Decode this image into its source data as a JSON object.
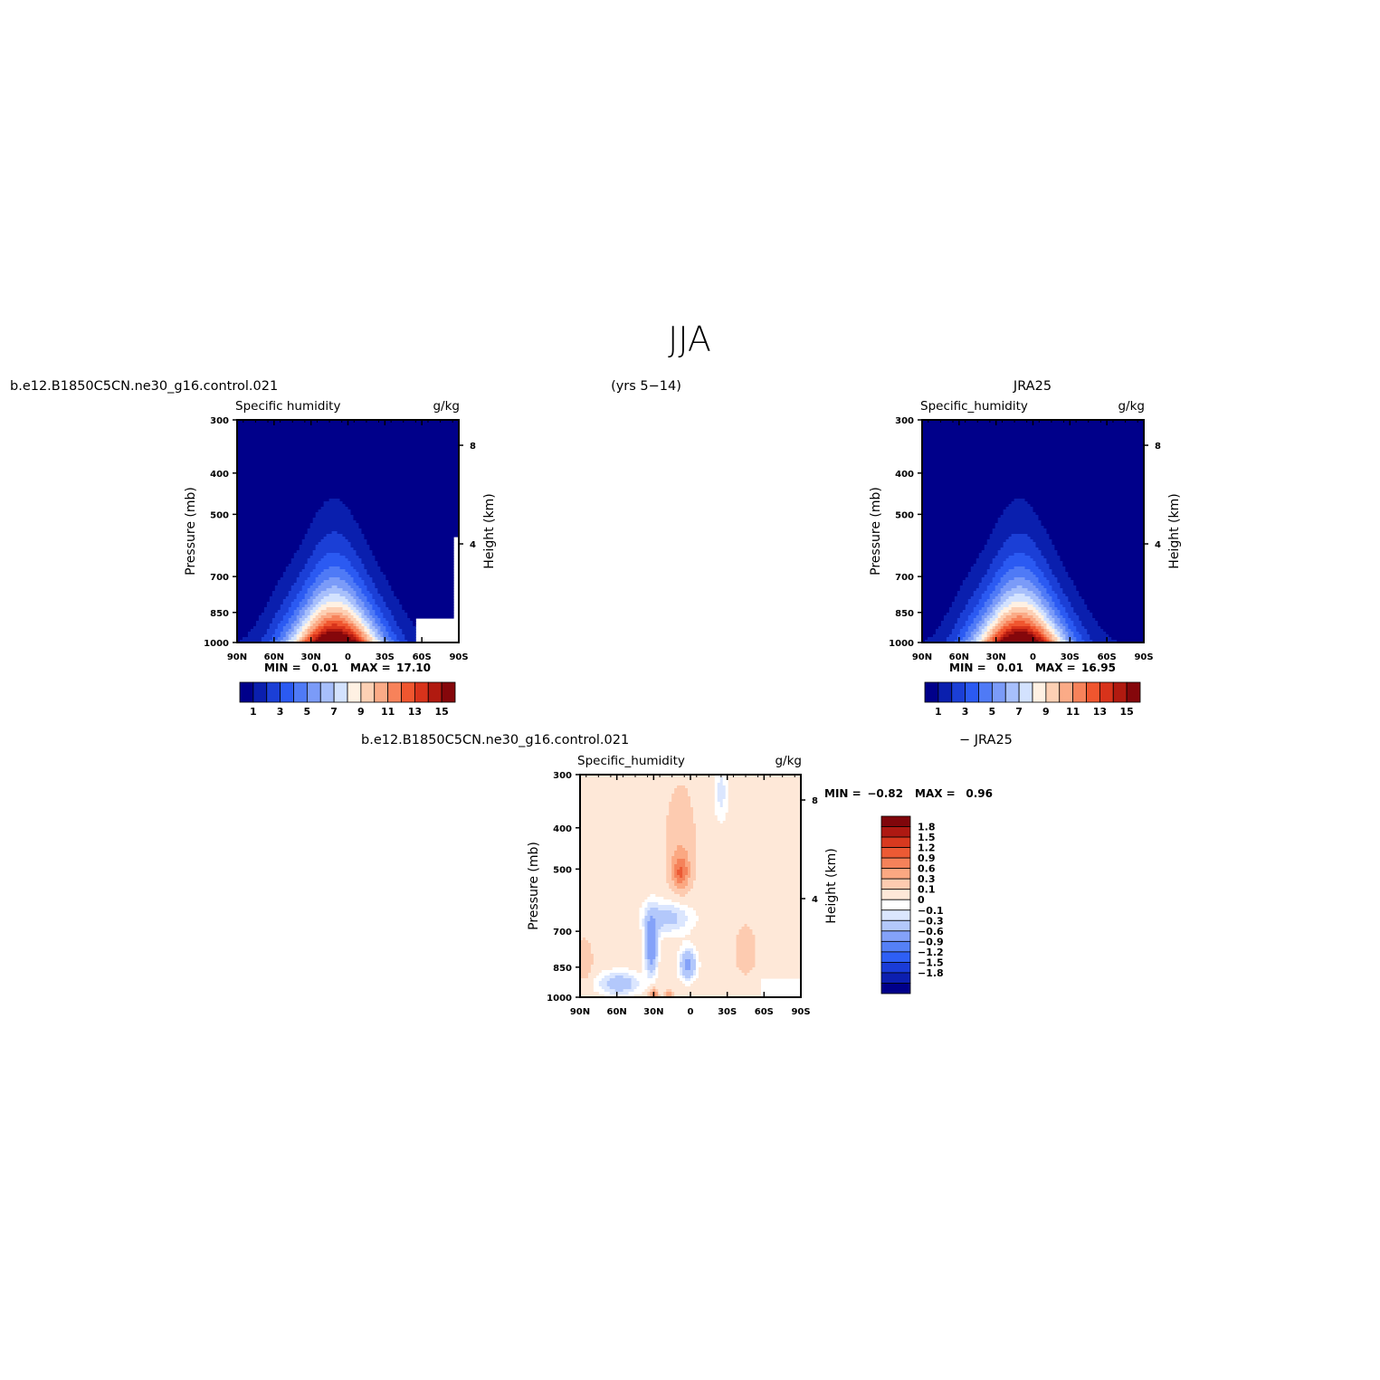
{
  "figure": {
    "title": "JJA",
    "period": "(yrs 5−14)"
  },
  "colors": {
    "abs_levels": [
      "#00008a",
      "#0a1fae",
      "#1b3fd6",
      "#2b5af2",
      "#4f7af6",
      "#7b9bf8",
      "#a7bffb",
      "#d3e2fe",
      "#fff1e3",
      "#fdd0b4",
      "#fbab87",
      "#f7825a",
      "#f0562f",
      "#d8331b",
      "#b11a10",
      "#85070b"
    ],
    "diff_levels": [
      "#00008a",
      "#0c1fb0",
      "#1a3cd8",
      "#2e5ff5",
      "#5580f6",
      "#84a2f9",
      "#b3c8fb",
      "#dbe6fe",
      "#ffffff",
      "#fee8d8",
      "#fdcbb0",
      "#fba882",
      "#f5825a",
      "#ec5a34",
      "#d8391f",
      "#ae1912",
      "#80060b"
    ]
  },
  "chart_data": [
    {
      "type": "heatmap",
      "name": "model",
      "header": "b.e12.B1850C5CN.ne30_g16.control.021",
      "left_label": "Specific  humidity",
      "right_label": "g/kg",
      "xlabel": "",
      "ylabel": "Pressure (mb)",
      "y2label": "Height (km)",
      "x_ticks": [
        "90N",
        "60N",
        "30N",
        "0",
        "30S",
        "60S",
        "90S"
      ],
      "y_ticks": [
        "300",
        "400",
        "500",
        "700",
        "850",
        "1000"
      ],
      "y2_ticks": [
        "8",
        "4"
      ],
      "xlim": [
        90,
        -90
      ],
      "ylim": [
        1000,
        300
      ],
      "stats": {
        "min_label": "MIN =",
        "min": "0.01",
        "max_label": "MAX =",
        "max": "17.10"
      },
      "colorbar_labels": [
        "1",
        "3",
        "5",
        "7",
        "9",
        "11",
        "13",
        "15"
      ],
      "levels": [
        1,
        2,
        3,
        4,
        5,
        6,
        7,
        8,
        9,
        10,
        11,
        12,
        13,
        14,
        15
      ],
      "peak_value": 17.1,
      "peak_lat": 12,
      "missing_region": "60S-90S below 850 mb"
    },
    {
      "type": "heatmap",
      "name": "obs",
      "header": "JRA25",
      "left_label": "Specific_humidity",
      "right_label": "g/kg",
      "xlabel": "",
      "ylabel": "Pressure (mb)",
      "y2label": "Height (km)",
      "x_ticks": [
        "90N",
        "60N",
        "30N",
        "0",
        "30S",
        "60S",
        "90S"
      ],
      "y_ticks": [
        "300",
        "400",
        "500",
        "700",
        "850",
        "1000"
      ],
      "y2_ticks": [
        "8",
        "4"
      ],
      "xlim": [
        90,
        -90
      ],
      "ylim": [
        1000,
        300
      ],
      "stats": {
        "min_label": "MIN =",
        "min": "0.01",
        "max_label": "MAX =",
        "max": "16.95"
      },
      "colorbar_labels": [
        "1",
        "3",
        "5",
        "7",
        "9",
        "11",
        "13",
        "15"
      ],
      "levels": [
        1,
        2,
        3,
        4,
        5,
        6,
        7,
        8,
        9,
        10,
        11,
        12,
        13,
        14,
        15
      ],
      "peak_value": 16.95,
      "peak_lat": 12
    },
    {
      "type": "heatmap",
      "name": "difference",
      "header_left": "b.e12.B1850C5CN.ne30_g16.control.021",
      "header_right": "− JRA25",
      "left_label": "Specific_humidity",
      "right_label": "g/kg",
      "xlabel": "",
      "ylabel": "Pressure (mb)",
      "y2label": "Height (km)",
      "x_ticks": [
        "90N",
        "60N",
        "30N",
        "0",
        "30S",
        "60S",
        "90S"
      ],
      "y_ticks": [
        "300",
        "400",
        "500",
        "700",
        "850",
        "1000"
      ],
      "y2_ticks": [
        "8",
        "4"
      ],
      "xlim": [
        90,
        -90
      ],
      "ylim": [
        1000,
        300
      ],
      "stats": {
        "min_label": "MIN =",
        "min": "−0.82",
        "max_label": "MAX =",
        "max": "0.96"
      },
      "colorbar_labels": [
        "1.8",
        "1.5",
        "1.2",
        "0.9",
        "0.6",
        "0.3",
        "0.1",
        "0",
        "−0.1",
        "−0.3",
        "−0.6",
        "−0.9",
        "−1.2",
        "−1.5",
        "−1.8"
      ],
      "levels": [
        -1.8,
        -1.5,
        -1.2,
        -0.9,
        -0.6,
        -0.3,
        -0.1,
        0,
        0.1,
        0.3,
        0.6,
        0.9,
        1.2,
        1.5,
        1.8
      ],
      "missing_region": "60S-90S below 900 mb"
    }
  ]
}
